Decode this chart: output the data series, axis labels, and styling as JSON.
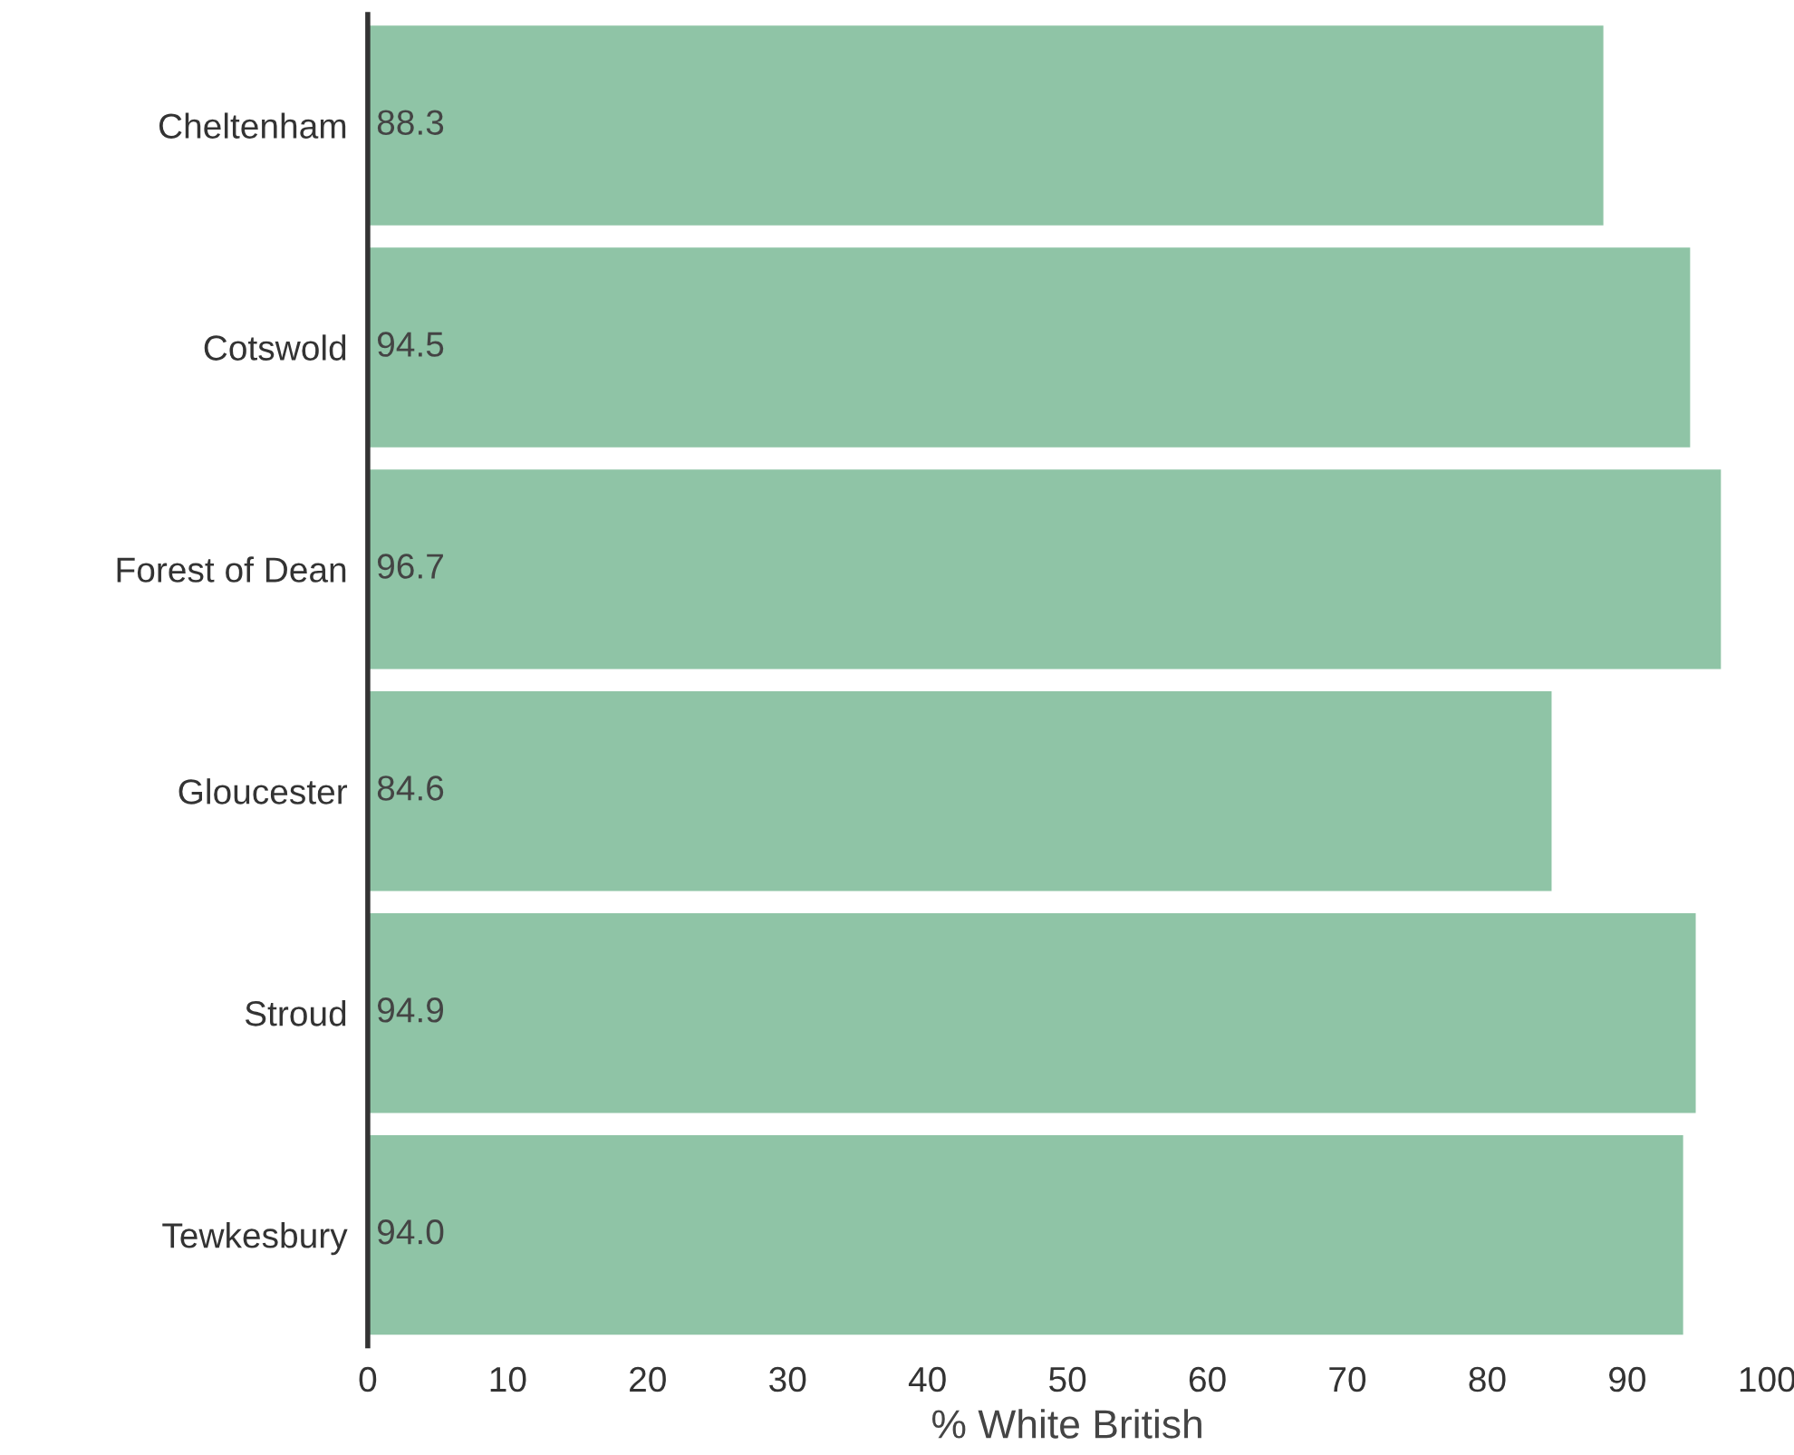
{
  "chart_data": {
    "type": "bar",
    "orientation": "horizontal",
    "xlabel": "% White British",
    "categories": [
      "Cheltenham",
      "Cotswold",
      "Forest of Dean",
      "Gloucester",
      "Stroud",
      "Tewkesbury"
    ],
    "values": [
      88.3,
      94.5,
      96.7,
      84.6,
      94.9,
      94.0
    ],
    "value_labels": [
      "88.3",
      "94.5",
      "96.7",
      "84.6",
      "94.9",
      "94.0"
    ],
    "color": "#8fc4a6",
    "xlim": [
      0,
      100
    ],
    "xticks": [
      0,
      10,
      20,
      30,
      40,
      50,
      60,
      70,
      80,
      90,
      100
    ],
    "grid": false,
    "legend": false
  }
}
